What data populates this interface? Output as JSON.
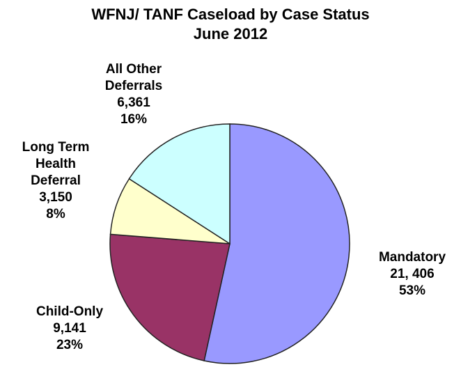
{
  "chart_data": {
    "type": "pie",
    "title": "WFNJ/ TANF Caseload by Case Status",
    "subtitle": "June 2012",
    "categories": [
      "Mandatory",
      "Child-Only",
      "Long Term Health Deferral",
      "All Other Deferrals"
    ],
    "values": [
      21406,
      9141,
      3150,
      6361
    ],
    "value_labels": [
      "21, 406",
      "9,141",
      "3,150",
      "6,361"
    ],
    "percents": [
      53,
      23,
      8,
      16
    ],
    "percent_labels": [
      "53%",
      "23%",
      "8%",
      "16%"
    ],
    "colors": [
      "#9999ff",
      "#993366",
      "#ffffcc",
      "#ccffff"
    ]
  }
}
